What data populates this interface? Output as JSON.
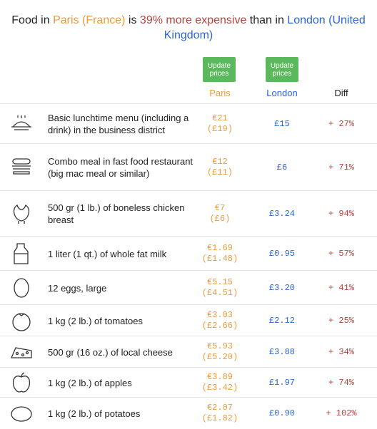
{
  "header": {
    "title": {
      "p1": "Food in",
      "p2": "Paris (France)",
      "p3": "is",
      "p4": "39% more expensive",
      "p5": "than in",
      "p6": "London (United Kingdom)"
    }
  },
  "table": {
    "buttons": [
      "Update prices",
      "Update prices"
    ],
    "columns": [
      "Paris",
      "London",
      "Diff"
    ],
    "rows": [
      {
        "item": "Basic lunchtime menu (including a drink) in the business district",
        "paris": "€21",
        "paris_converted": "(£19)",
        "london": "£15",
        "diff": "+ 27%"
      },
      {
        "item": "Combo meal in fast food restaurant (big mac meal or similar)",
        "paris": "€12",
        "paris_converted": "(£11)",
        "london": "£6",
        "diff": "+ 71%"
      },
      {
        "item": "500 gr (1 lb.) of boneless chicken breast",
        "paris": "€7",
        "paris_converted": "(£6)",
        "london": "£3.24",
        "diff": "+ 94%"
      },
      {
        "item": "1 liter (1 qt.) of whole fat milk",
        "paris": "€1.69",
        "paris_converted": "(£1.48)",
        "london": "£0.95",
        "diff": "+ 57%"
      },
      {
        "item": "12 eggs, large",
        "paris": "€5.15",
        "paris_converted": "(£4.51)",
        "london": "£3.20",
        "diff": "+ 41%"
      },
      {
        "item": "1 kg (2 lb.) of tomatoes",
        "paris": "€3.03",
        "paris_converted": "(£2.66)",
        "london": "£2.12",
        "diff": "+ 25%"
      },
      {
        "item": "500 gr (16 oz.) of local cheese",
        "paris": "€5.93",
        "paris_converted": "(£5.20)",
        "london": "£3.88",
        "diff": "+ 34%"
      },
      {
        "item": "1 kg (2 lb.) of apples",
        "paris": "€3.89",
        "paris_converted": "(£3.42)",
        "london": "£1.97",
        "diff": "+ 74%"
      },
      {
        "item": "1 kg (2 lb.) of potatoes",
        "paris": "€2.07",
        "paris_converted": "(£1.82)",
        "london": "£0.90",
        "diff": "+ 102%"
      }
    ]
  }
}
